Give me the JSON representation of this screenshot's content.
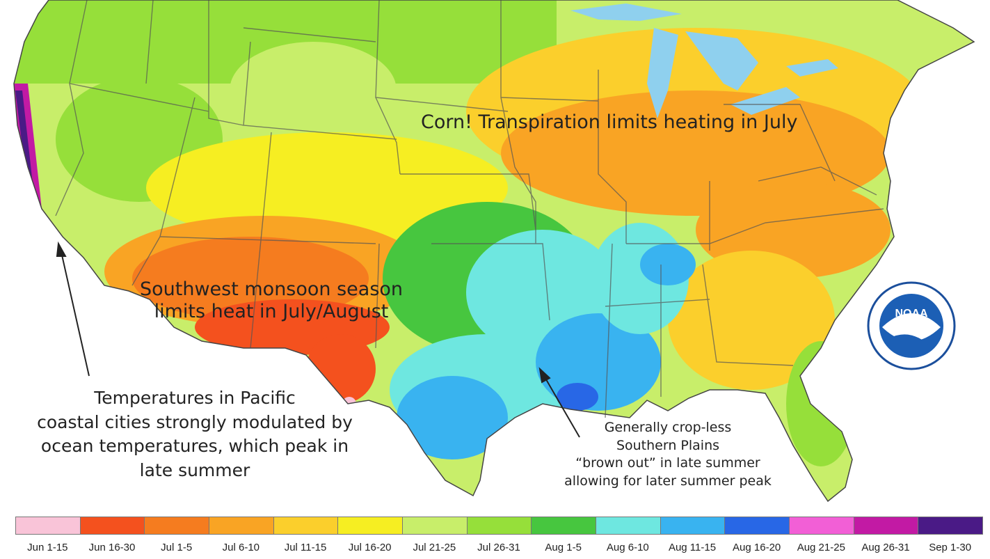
{
  "annotations": {
    "corn": "Corn!  Transpiration limits heating in July",
    "monsoon": [
      "Southwest monsoon season",
      "limits heat in July/August"
    ],
    "pacific": [
      "Temperatures in Pacific",
      "coastal cities strongly modulated by",
      "ocean temperatures, which peak in",
      "late summer"
    ],
    "plains": [
      "Generally crop-less",
      "Southern Plains",
      "“brown out” in late summer",
      "allowing for later summer peak"
    ]
  },
  "logo": {
    "text": "NOAA"
  },
  "legend": [
    {
      "label": "Jun 1-15",
      "color": "#f9c4d8"
    },
    {
      "label": "Jun 16-30",
      "color": "#f4511e"
    },
    {
      "label": "Jul 1-5",
      "color": "#f57c1f"
    },
    {
      "label": "Jul 6-10",
      "color": "#f9a424"
    },
    {
      "label": "Jul 11-15",
      "color": "#fbcf2c"
    },
    {
      "label": "Jul 16-20",
      "color": "#f6ee22"
    },
    {
      "label": "Jul 21-25",
      "color": "#c8ee6a"
    },
    {
      "label": "Jul 26-31",
      "color": "#96df3a"
    },
    {
      "label": "Aug 1-5",
      "color": "#47c63f"
    },
    {
      "label": "Aug 6-10",
      "color": "#6ee7e0"
    },
    {
      "label": "Aug 11-15",
      "color": "#39b3f0"
    },
    {
      "label": "Aug 16-20",
      "color": "#2867e6"
    },
    {
      "label": "Aug 21-25",
      "color": "#f25fd6"
    },
    {
      "label": "Aug 26-31",
      "color": "#c21aa4"
    },
    {
      "label": "Sep 1-30",
      "color": "#4a1a86"
    }
  ]
}
